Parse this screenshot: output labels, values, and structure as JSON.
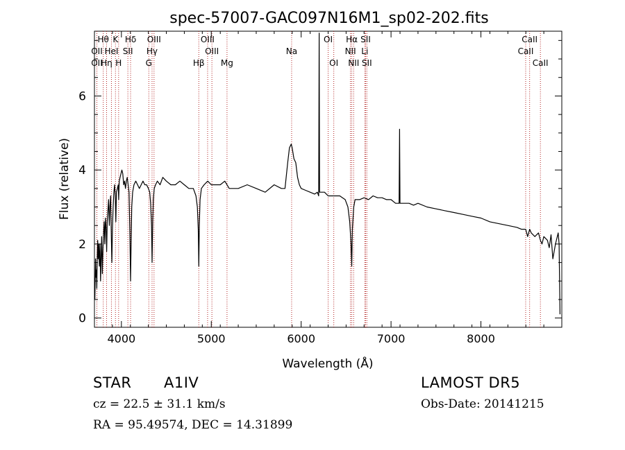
{
  "info": {
    "class": "STAR",
    "subclass": "A1IV",
    "survey": "LAMOST DR5",
    "cz": "cz = 22.5 ± 31.1 km/s",
    "obs_date": "Obs-Date: 20141215",
    "radec": "RA =  95.49574, DEC =  14.31899"
  },
  "chart_data": {
    "type": "line",
    "title": "spec-57007-GAC097N16M1_sp02-202.fits",
    "xlabel": "Wavelength (Å)",
    "ylabel": "Flux (relative)",
    "xlim": [
      3700,
      8900
    ],
    "ylim": [
      -0.25,
      7.75
    ],
    "xticks": [
      4000,
      5000,
      6000,
      7000,
      8000
    ],
    "yticks": [
      0,
      2,
      4,
      6
    ],
    "grid": false,
    "line_color": "#000000",
    "marker_color": "#b22222",
    "lines": [
      {
        "label": "Hθ",
        "x": 3798,
        "row": 0
      },
      {
        "label": "OII",
        "x": 3727,
        "row": 1
      },
      {
        "label": "OII",
        "x": 3727,
        "row": 2
      },
      {
        "label": "Hη",
        "x": 3835,
        "row": 2
      },
      {
        "label": "K",
        "x": 3934,
        "row": 0
      },
      {
        "label": "HeI",
        "x": 3889,
        "row": 1
      },
      {
        "label": "H",
        "x": 3969,
        "row": 2
      },
      {
        "label": "Hδ",
        "x": 4102,
        "row": 0
      },
      {
        "label": "SII",
        "x": 4072,
        "row": 1
      },
      {
        "label": "OIII",
        "x": 4363,
        "row": 0
      },
      {
        "label": "Hγ",
        "x": 4341,
        "row": 1
      },
      {
        "label": "G",
        "x": 4305,
        "row": 2
      },
      {
        "label": "OIII",
        "x": 4959,
        "row": 0
      },
      {
        "label": "OIII",
        "x": 5007,
        "row": 1
      },
      {
        "label": "Hβ",
        "x": 4861,
        "row": 2
      },
      {
        "label": "Mg",
        "x": 5175,
        "row": 2
      },
      {
        "label": "Na",
        "x": 5894,
        "row": 1
      },
      {
        "label": "OI",
        "x": 6300,
        "row": 0
      },
      {
        "label": "OI",
        "x": 6363,
        "row": 2
      },
      {
        "label": "Hα",
        "x": 6563,
        "row": 0
      },
      {
        "label": "NII",
        "x": 6548,
        "row": 1
      },
      {
        "label": "NII",
        "x": 6584,
        "row": 2
      },
      {
        "label": "SII",
        "x": 6717,
        "row": 0
      },
      {
        "label": "Li",
        "x": 6708,
        "row": 1
      },
      {
        "label": "SII",
        "x": 6731,
        "row": 2
      },
      {
        "label": "CaII",
        "x": 8542,
        "row": 0
      },
      {
        "label": "CaII",
        "x": 8498,
        "row": 1
      },
      {
        "label": "CaII",
        "x": 8662,
        "row": 2
      }
    ],
    "series": [
      {
        "x": [
          3705,
          3712,
          3718,
          3722,
          3726,
          3730,
          3736,
          3742,
          3748,
          3755,
          3762,
          3768,
          3775,
          3780,
          3788,
          3795,
          3800,
          3808,
          3815,
          3822,
          3830,
          3836,
          3842,
          3850,
          3858,
          3865,
          3872,
          3880,
          3888,
          3894,
          3900,
          3908,
          3916,
          3924,
          3932,
          3938,
          3945,
          3955,
          3965,
          3970,
          3976,
          3985,
          3995,
          4005,
          4015,
          4025,
          4035,
          4045,
          4055,
          4065,
          4075,
          4085,
          4095,
          4102,
          4108,
          4115,
          4125,
          4140,
          4160,
          4180,
          4200,
          4220,
          4240,
          4260,
          4280,
          4300,
          4315,
          4325,
          4335,
          4341,
          4348,
          4355,
          4365,
          4380,
          4400,
          4430,
          4460,
          4500,
          4550,
          4600,
          4650,
          4700,
          4750,
          4800,
          4830,
          4845,
          4855,
          4861,
          4867,
          4875,
          4890,
          4920,
          4960,
          5000,
          5050,
          5100,
          5150,
          5200,
          5300,
          5400,
          5500,
          5600,
          5700,
          5780,
          5820,
          5850,
          5870,
          5890,
          5900,
          5920,
          5940,
          5960,
          5980,
          6000,
          6050,
          6100,
          6150,
          6180,
          6195,
          6200,
          6205,
          6210,
          6230,
          6260,
          6300,
          6350,
          6400,
          6430,
          6460,
          6490,
          6520,
          6540,
          6555,
          6563,
          6570,
          6585,
          6600,
          6620,
          6650,
          6700,
          6750,
          6800,
          6850,
          6900,
          6950,
          7000,
          7050,
          7080,
          7090,
          7095,
          7100,
          7110,
          7150,
          7200,
          7250,
          7300,
          7400,
          7500,
          7600,
          7700,
          7800,
          7900,
          8000,
          8100,
          8200,
          8300,
          8400,
          8450,
          8498,
          8520,
          8542,
          8560,
          8600,
          8640,
          8662,
          8680,
          8700,
          8740,
          8760,
          8780,
          8800,
          8830,
          8850,
          8860,
          8870,
          8880
        ],
        "y": [
          0.5,
          1.6,
          1.1,
          1.3,
          0.8,
          1.5,
          2.1,
          1.6,
          2.0,
          1.4,
          2.0,
          1.0,
          1.7,
          2.2,
          1.2,
          1.9,
          2.2,
          2.6,
          2.0,
          2.7,
          2.4,
          1.8,
          2.6,
          2.9,
          3.2,
          2.5,
          3.0,
          3.3,
          2.2,
          1.5,
          2.4,
          3.0,
          3.4,
          3.6,
          3.3,
          2.6,
          3.4,
          3.5,
          3.6,
          3.2,
          3.7,
          3.8,
          3.9,
          4.0,
          3.9,
          3.6,
          3.7,
          3.5,
          3.7,
          3.8,
          3.6,
          3.4,
          2.2,
          1.0,
          2.0,
          3.0,
          3.4,
          3.6,
          3.7,
          3.6,
          3.5,
          3.6,
          3.7,
          3.6,
          3.6,
          3.5,
          3.4,
          3.1,
          2.5,
          1.5,
          2.6,
          3.2,
          3.5,
          3.6,
          3.7,
          3.6,
          3.8,
          3.7,
          3.6,
          3.6,
          3.7,
          3.6,
          3.5,
          3.5,
          3.3,
          3.0,
          2.4,
          1.4,
          2.5,
          3.2,
          3.5,
          3.6,
          3.7,
          3.6,
          3.6,
          3.6,
          3.7,
          3.5,
          3.5,
          3.6,
          3.5,
          3.4,
          3.6,
          3.5,
          3.5,
          4.2,
          4.6,
          4.7,
          4.6,
          4.3,
          4.2,
          3.8,
          3.6,
          3.5,
          3.45,
          3.4,
          3.35,
          3.4,
          3.3,
          7.7,
          3.4,
          3.4,
          3.4,
          3.4,
          3.3,
          3.3,
          3.3,
          3.3,
          3.25,
          3.2,
          3.0,
          2.6,
          2.0,
          1.4,
          2.4,
          3.0,
          3.2,
          3.2,
          3.2,
          3.25,
          3.2,
          3.3,
          3.25,
          3.25,
          3.2,
          3.2,
          3.1,
          3.1,
          3.1,
          5.1,
          3.1,
          3.1,
          3.1,
          3.1,
          3.05,
          3.1,
          3.0,
          2.95,
          2.9,
          2.85,
          2.8,
          2.75,
          2.7,
          2.6,
          2.55,
          2.5,
          2.45,
          2.4,
          2.4,
          2.2,
          2.4,
          2.3,
          2.2,
          2.3,
          2.1,
          2.0,
          2.2,
          2.1,
          1.9,
          2.25,
          1.6,
          2.0,
          2.2,
          2.3,
          2.0,
          0.1
        ]
      }
    ]
  }
}
